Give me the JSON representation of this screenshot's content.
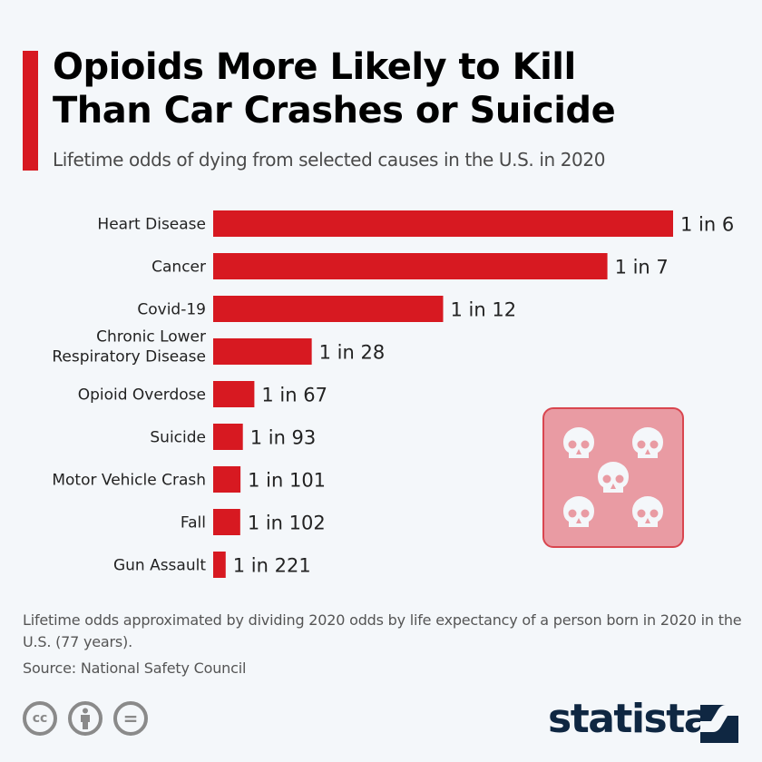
{
  "header": {
    "title_line1": "Opioids More Likely to Kill",
    "title_line2": "Than Car Crashes or Suicide",
    "subtitle": "Lifetime odds of dying from selected causes in the U.S. in 2020"
  },
  "chart_data": {
    "type": "bar",
    "orientation": "horizontal",
    "title": "Opioids More Likely to Kill Than Car Crashes or Suicide",
    "subtitle": "Lifetime odds of dying from selected causes in the U.S. in 2020",
    "xlabel": "",
    "ylabel": "",
    "grid": false,
    "categories": [
      [
        "Heart Disease"
      ],
      [
        "Cancer"
      ],
      [
        "Covid-19"
      ],
      [
        "Chronic Lower",
        "Respiratory Disease"
      ],
      [
        "Opioid Overdose"
      ],
      [
        "Suicide"
      ],
      [
        "Motor Vehicle Crash"
      ],
      [
        "Fall"
      ],
      [
        "Gun Assault"
      ]
    ],
    "odds_denominator": [
      6,
      7,
      12,
      28,
      67,
      93,
      101,
      102,
      221
    ],
    "value_labels": [
      "1 in 6",
      "1 in 7",
      "1 in 12",
      "1 in 28",
      "1 in 67",
      "1 in 93",
      "1 in 101",
      "1 in 102",
      "1 in 221"
    ],
    "bar_color": "#d71921"
  },
  "footer": {
    "note": "Lifetime odds approximated by dividing 2020 odds by life expectancy of a person born in 2020 in the U.S. (77 years).",
    "source": "Source: National Safety Council",
    "license_icons": [
      "cc-icon",
      "attribution-icon",
      "no-derivatives-icon"
    ],
    "cc_label": "cc",
    "equals_label": "=",
    "brand": "statista"
  },
  "colors": {
    "accent": "#d71921",
    "background": "#f4f7fa",
    "brand": "#0f2742",
    "decoration_fill": "#e99ba3"
  }
}
